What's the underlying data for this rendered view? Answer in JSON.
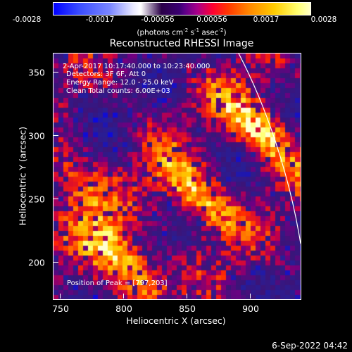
{
  "colorbar": {
    "ticks": [
      "-0.0028",
      "-0.0017",
      "-0.00056",
      "0.00056",
      "0.0017",
      "0.0028"
    ],
    "unit_parts": {
      "a": "(photons cm",
      "a_sup": "-2",
      "b": " s",
      "b_sup": "-1",
      "c": " asec",
      "c_sup": "-2",
      "d": ")"
    }
  },
  "plot": {
    "title": "Reconstructed RHESSI Image",
    "annotations": {
      "time": "2-Apr-2017 10:17:40.000 to 10:23:40.000",
      "detectors": "Detectors: 3F 6F, Att 0",
      "energy": "Energy Range: 12.0 - 25.0 keV",
      "clean": "Clean     Total counts: 6.00E+03",
      "peak": "Position of Peak = [797,203]"
    },
    "xlabel": "Heliocentric X (arcsec)",
    "ylabel": "Heliocentric Y (arcsec)",
    "xticks": [
      "750",
      "800",
      "850",
      "900"
    ],
    "yticks": [
      "350",
      "300",
      "250",
      "200"
    ]
  },
  "footer": {
    "timestamp": "6-Sep-2022 04:42"
  },
  "image_data": {
    "xlim": [
      743,
      938
    ],
    "ylim": [
      172,
      367
    ],
    "sources": [
      {
        "x": 797,
        "y": 203,
        "intensity": 1.0
      },
      {
        "x": 855,
        "y": 255,
        "intensity": 0.9
      },
      {
        "x": 905,
        "y": 308,
        "intensity": 0.95
      },
      {
        "x": 760,
        "y": 265,
        "intensity": 0.55
      }
    ],
    "colors": {
      "background": "#000000",
      "negative": "#0000ff",
      "low": "#4a2a90",
      "mid": "#ff3800",
      "high": "#ffff70"
    }
  }
}
